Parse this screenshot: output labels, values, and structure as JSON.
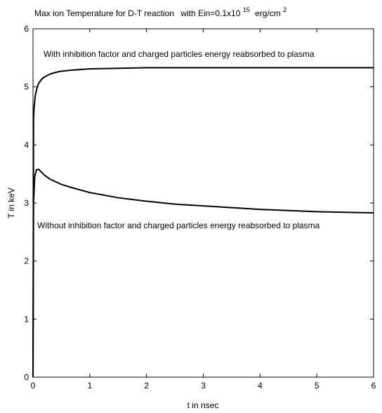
{
  "chart_data": {
    "type": "line",
    "title": {
      "part1": "Max ion Temperature for D-T reaction",
      "part2": "with Ein=0.1x10",
      "exponent": "15",
      "unit": "erg/cm",
      "unit_exponent": "2"
    },
    "xlabel": "t in nsec",
    "ylabel": "T in keV",
    "xlim": [
      0,
      6
    ],
    "ylim": [
      0,
      6
    ],
    "xticks": [
      "0",
      "1",
      "2",
      "3",
      "4",
      "5",
      "6"
    ],
    "yticks": [
      "0",
      "1",
      "2",
      "3",
      "4",
      "5",
      "6"
    ],
    "grid": false,
    "line_color": "#000000",
    "series": [
      {
        "x": [
          0,
          0.01,
          0.02,
          0.04,
          0.07,
          0.1,
          0.15,
          0.2,
          0.3,
          0.4,
          0.5,
          0.7,
          1.0,
          1.5,
          2.0,
          3.0,
          4.0,
          5.0,
          6.0
        ],
        "y": [
          0,
          4.45,
          4.65,
          4.85,
          4.98,
          5.06,
          5.13,
          5.17,
          5.22,
          5.25,
          5.27,
          5.29,
          5.31,
          5.32,
          5.33,
          5.33,
          5.33,
          5.33,
          5.33
        ]
      },
      {
        "x": [
          0,
          0.01,
          0.03,
          0.06,
          0.1,
          0.15,
          0.2,
          0.3,
          0.5,
          0.7,
          1.0,
          1.5,
          2.0,
          2.5,
          3.0,
          3.5,
          4.0,
          4.5,
          5.0,
          5.5,
          6.0
        ],
        "y": [
          0,
          3.0,
          3.45,
          3.57,
          3.58,
          3.53,
          3.48,
          3.41,
          3.32,
          3.26,
          3.18,
          3.09,
          3.03,
          2.98,
          2.95,
          2.92,
          2.89,
          2.87,
          2.85,
          2.84,
          2.83
        ]
      }
    ],
    "annotations": [
      {
        "text": "With inhibition factor and charged particles energy reabsorbed to plasma"
      },
      {
        "text": "Without inhibition factor and charged particles energy reabsorbed to plasma"
      }
    ]
  }
}
